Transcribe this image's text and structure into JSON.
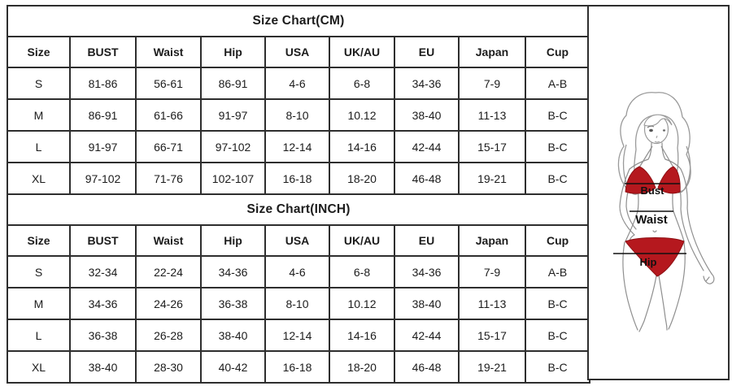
{
  "page": {
    "background": "#ffffff",
    "border_color": "#2e2e2e",
    "text_color": "#1c1c1c"
  },
  "tables": [
    {
      "title": "Size Chart(CM)",
      "columns": [
        "Size",
        "BUST",
        "Waist",
        "Hip",
        "USA",
        "UK/AU",
        "EU",
        "Japan",
        "Cup"
      ],
      "rows": [
        [
          "S",
          "81-86",
          "56-61",
          "86-91",
          "4-6",
          "6-8",
          "34-36",
          "7-9",
          "A-B"
        ],
        [
          "M",
          "86-91",
          "61-66",
          "91-97",
          "8-10",
          "10.12",
          "38-40",
          "11-13",
          "B-C"
        ],
        [
          "L",
          "91-97",
          "66-71",
          "97-102",
          "12-14",
          "14-16",
          "42-44",
          "15-17",
          "B-C"
        ],
        [
          "XL",
          "97-102",
          "71-76",
          "102-107",
          "16-18",
          "18-20",
          "46-48",
          "19-21",
          "B-C"
        ]
      ]
    },
    {
      "title": "Size Chart(INCH)",
      "columns": [
        "Size",
        "BUST",
        "Waist",
        "Hip",
        "USA",
        "UK/AU",
        "EU",
        "Japan",
        "Cup"
      ],
      "rows": [
        [
          "S",
          "32-34",
          "22-24",
          "34-36",
          "4-6",
          "6-8",
          "34-36",
          "7-9",
          "A-B"
        ],
        [
          "M",
          "34-36",
          "24-26",
          "36-38",
          "8-10",
          "10.12",
          "38-40",
          "11-13",
          "B-C"
        ],
        [
          "L",
          "36-38",
          "26-28",
          "38-40",
          "12-14",
          "14-16",
          "42-44",
          "15-17",
          "B-C"
        ],
        [
          "XL",
          "38-40",
          "28-30",
          "40-42",
          "16-18",
          "18-20",
          "46-48",
          "19-21",
          "B-C"
        ]
      ]
    }
  ],
  "figure": {
    "labels": {
      "bust": "Bust",
      "waist": "Waist",
      "hip": "Hip"
    },
    "bikini_color": "#b5181e",
    "bikini_edge_color": "#8e1014",
    "outline_color": "#8f8f8f",
    "measure_line_color": "#111111",
    "label_color": "#111111"
  }
}
